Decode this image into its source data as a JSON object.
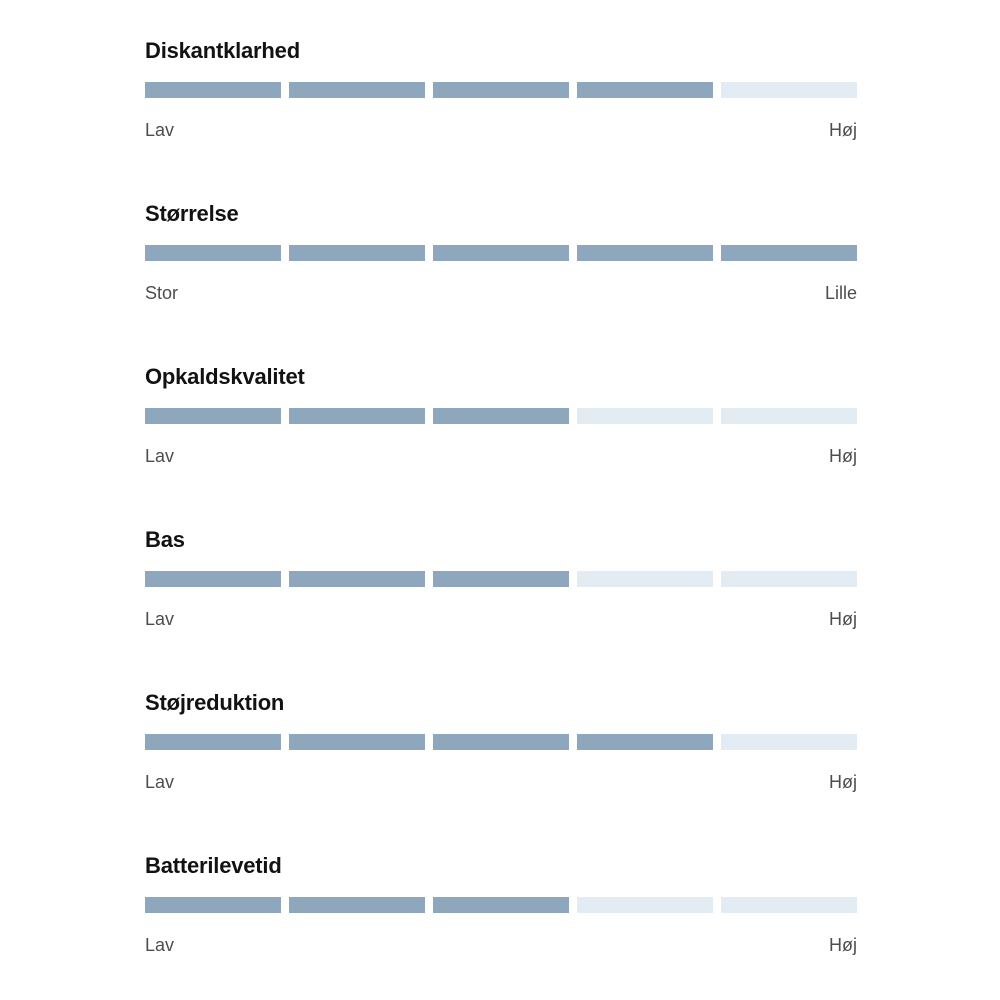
{
  "colors": {
    "background": "#FFFFFF",
    "segment_filled": "#8FA7BC",
    "segment_empty": "#E4ECF3",
    "title_text": "#121212",
    "scale_label_text": "#4D4D4D"
  },
  "ratings": [
    {
      "title": "Diskantklarhed",
      "value": 4,
      "max": 5,
      "left_label": "Lav",
      "right_label": "Høj"
    },
    {
      "title": "Størrelse",
      "value": 5,
      "max": 5,
      "left_label": "Stor",
      "right_label": "Lille"
    },
    {
      "title": "Opkaldskvalitet",
      "value": 3,
      "max": 5,
      "left_label": "Lav",
      "right_label": "Høj"
    },
    {
      "title": "Bas",
      "value": 3,
      "max": 5,
      "left_label": "Lav",
      "right_label": "Høj"
    },
    {
      "title": "Støjreduktion",
      "value": 4,
      "max": 5,
      "left_label": "Lav",
      "right_label": "Høj"
    },
    {
      "title": "Batterilevetid",
      "value": 3,
      "max": 5,
      "left_label": "Lav",
      "right_label": "Høj"
    }
  ],
  "chart_data": {
    "type": "bar",
    "categories": [
      "Diskantklarhed",
      "Størrelse",
      "Opkaldskvalitet",
      "Bas",
      "Støjreduktion",
      "Batterilevetid"
    ],
    "values": [
      4,
      5,
      3,
      3,
      4,
      3
    ],
    "value_range": [
      0,
      5
    ],
    "segments_per_scale": 5,
    "scale_endpoint_labels": [
      [
        "Lav",
        "Høj"
      ],
      [
        "Stor",
        "Lille"
      ],
      [
        "Lav",
        "Høj"
      ],
      [
        "Lav",
        "Høj"
      ],
      [
        "Lav",
        "Høj"
      ],
      [
        "Lav",
        "Høj"
      ]
    ],
    "title": "",
    "xlabel": "",
    "ylabel": "",
    "legend": false,
    "grid": false
  }
}
